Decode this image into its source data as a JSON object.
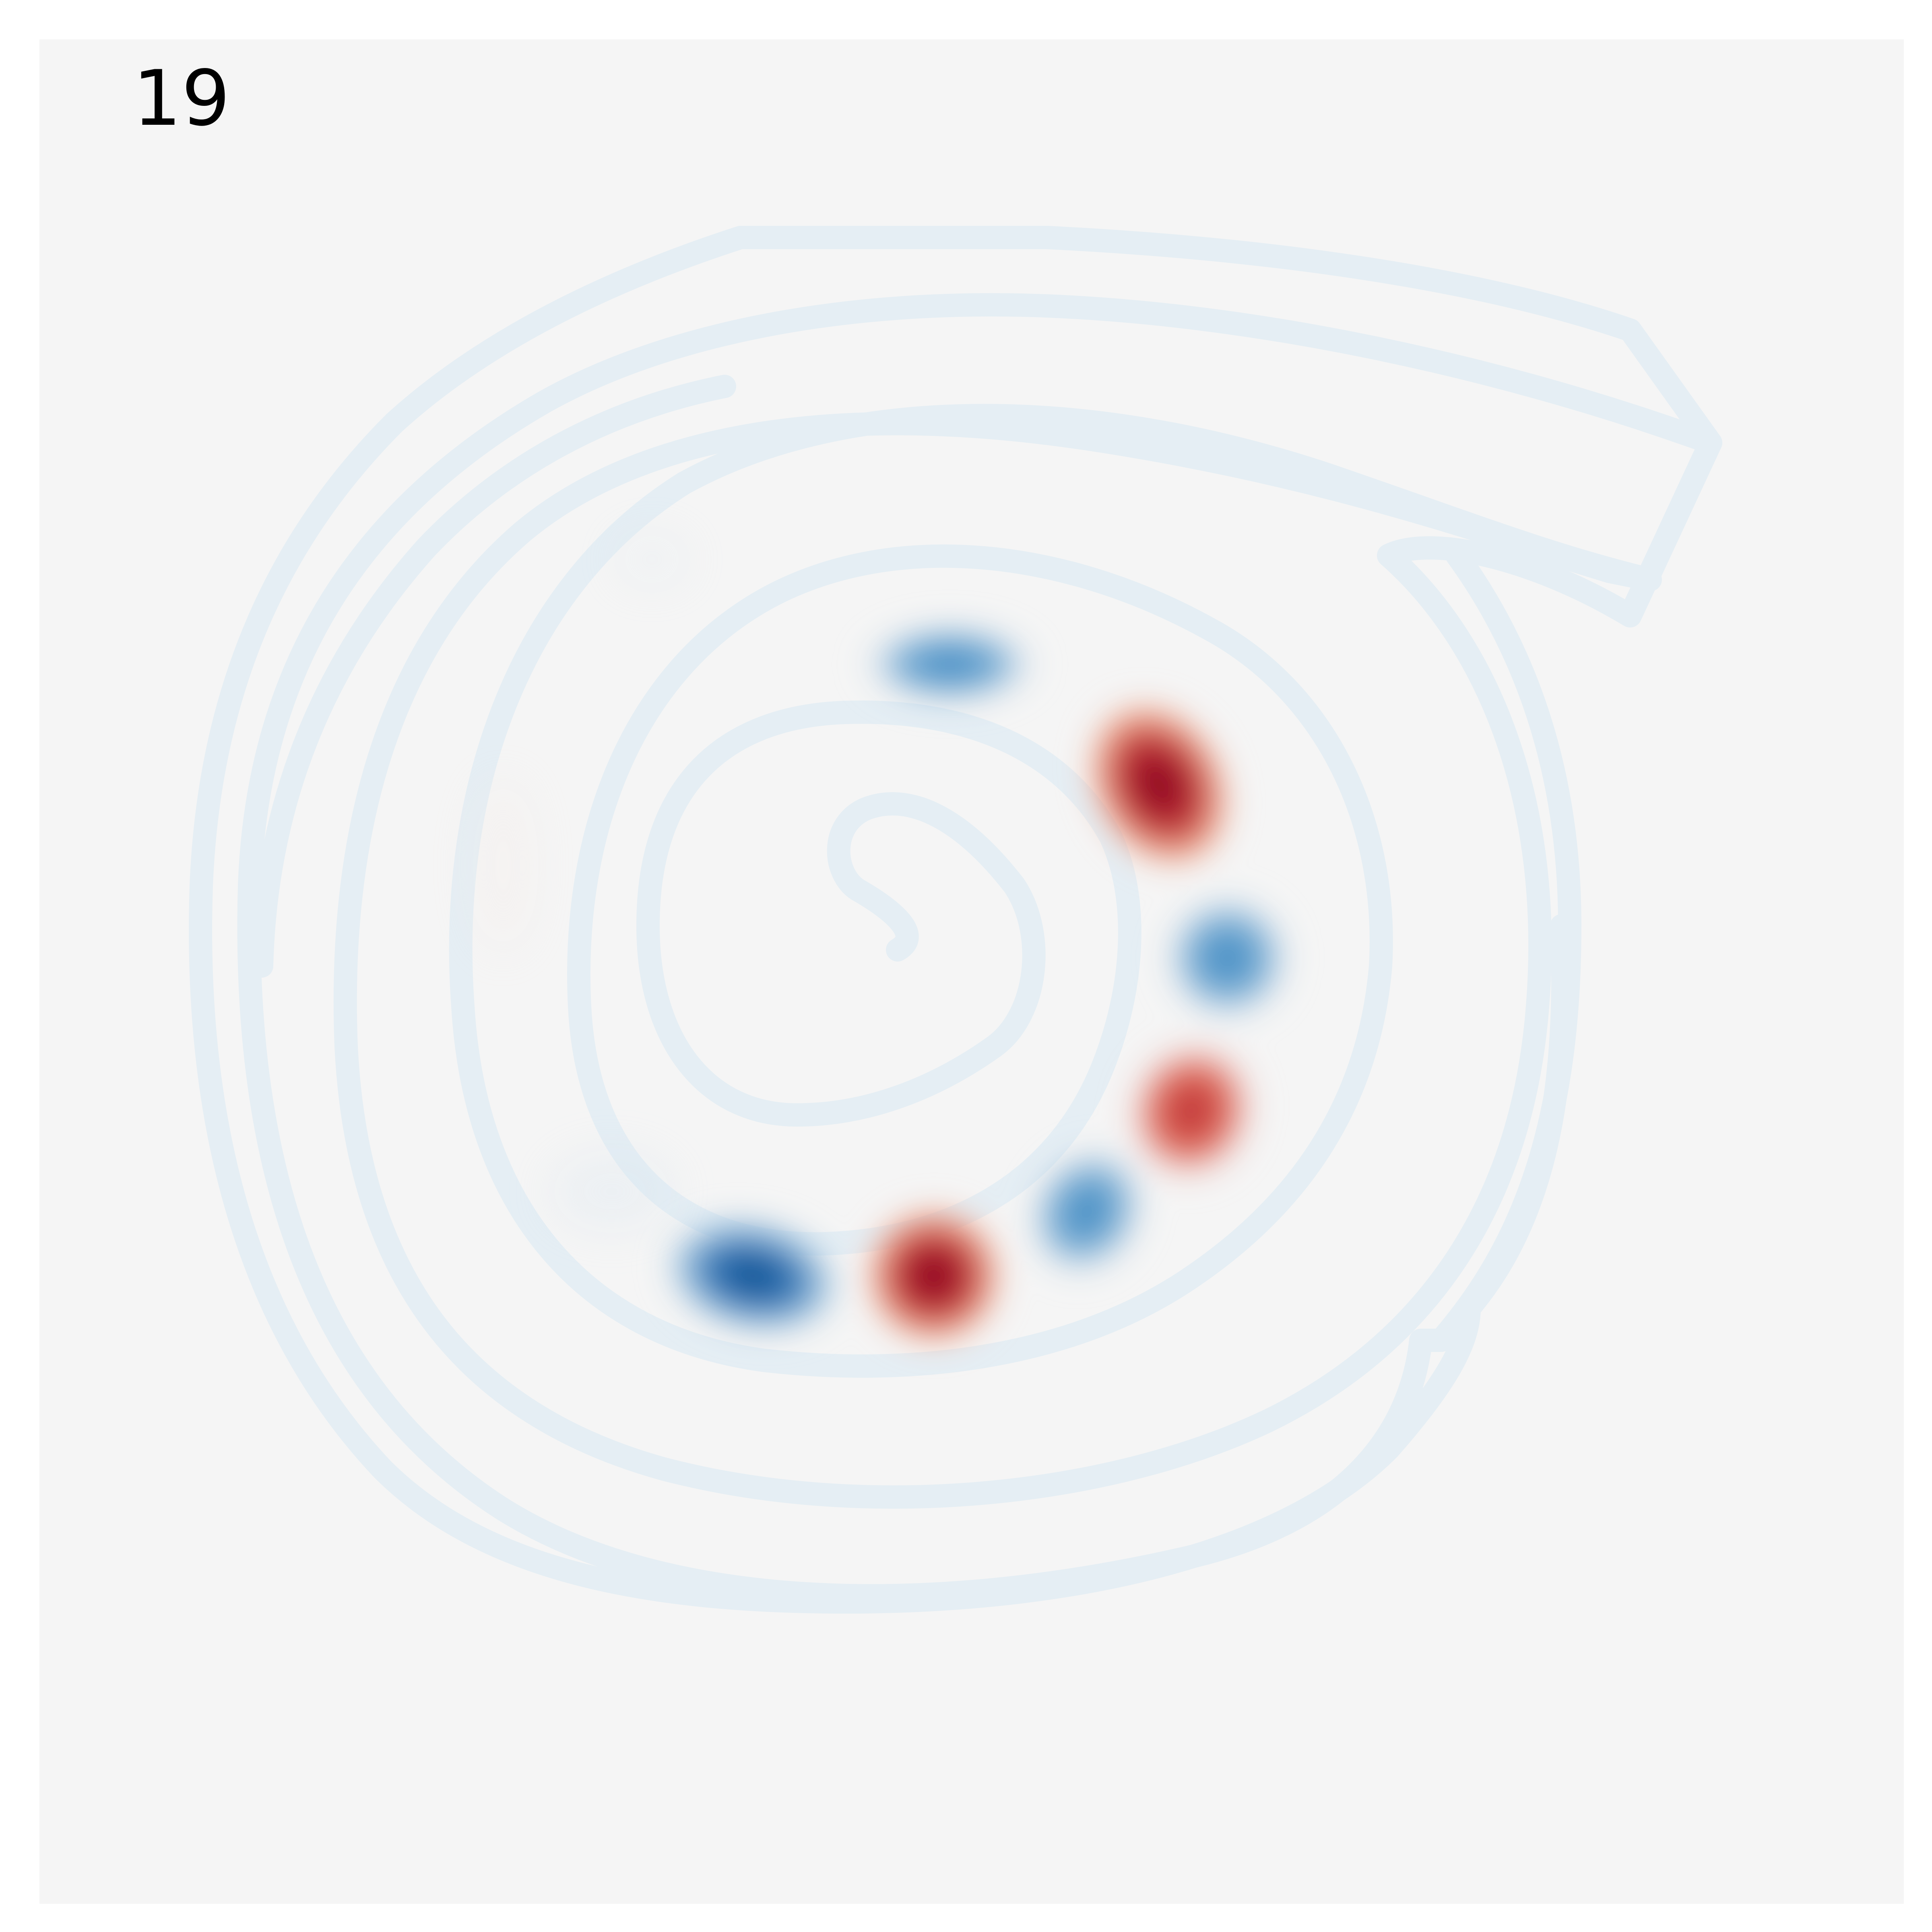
{
  "frame_label": "19",
  "colors": {
    "background": "#f5f5f5",
    "page": "#ffffff",
    "channel": "#e5eef4",
    "positive": "#b2182b",
    "positive_strong": "#8b0a24",
    "negative": "#2166ac",
    "negative_strong": "#0b4a8a"
  },
  "image_description_tokens": {
    "channel_shape": "spiral",
    "colormap": "diverging-red-blue"
  }
}
